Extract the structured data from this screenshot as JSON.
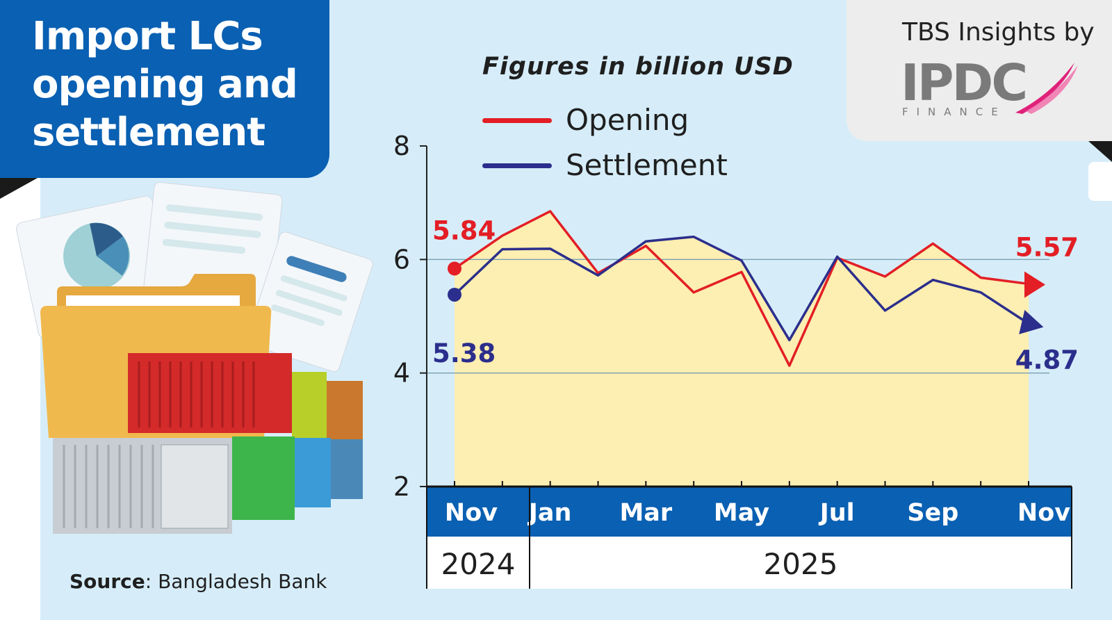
{
  "title": "Import LCs opening and settlement",
  "subtitle": "Figures in billion USD",
  "brand": {
    "prefix": "TBS Insights by",
    "logo_text": "IPDC",
    "logo_subtext": "FINANCE"
  },
  "source": {
    "label": "Source",
    "value": ": Bangladesh Bank"
  },
  "colors": {
    "opening": "#e31e25",
    "settlement": "#2b2e8c",
    "area_fill": "#fdeeb1",
    "axis_band": "#0a60b2",
    "title_bg": "#0a60b2",
    "background": "#d6edf9"
  },
  "chart_data": {
    "type": "line",
    "title": "Import LCs opening and settlement",
    "ylabel": "",
    "xlabel": "",
    "ylim": [
      2,
      8
    ],
    "yticks": [
      2,
      4,
      6,
      8
    ],
    "grid": true,
    "legend_placement": "top-left",
    "x": [
      "Nov 2024",
      "Dec 2024",
      "Jan 2025",
      "Feb 2025",
      "Mar 2025",
      "Apr 2025",
      "May 2025",
      "Jun 2025",
      "Jul 2025",
      "Aug 2025",
      "Sep 2025",
      "Oct 2025",
      "Nov 2025"
    ],
    "x_tick_labels": [
      "Nov",
      "",
      "Jan",
      "",
      "Mar",
      "",
      "May",
      "",
      "Jul",
      "",
      "Sep",
      "",
      "Nov"
    ],
    "year_labels": [
      {
        "label": "2024",
        "from": 0,
        "to": 0
      },
      {
        "label": "2025",
        "from": 1,
        "to": 12
      }
    ],
    "series": [
      {
        "name": "Opening",
        "values": [
          5.84,
          6.42,
          6.85,
          5.76,
          6.24,
          5.42,
          5.78,
          4.13,
          6.03,
          5.7,
          6.28,
          5.68,
          5.57
        ]
      },
      {
        "name": "Settlement",
        "values": [
          5.38,
          6.18,
          6.19,
          5.72,
          6.32,
          6.4,
          5.98,
          4.58,
          6.05,
          5.1,
          5.64,
          5.42,
          4.87
        ]
      }
    ],
    "annotations": [
      {
        "series": "Opening",
        "point": "first",
        "text": "5.84"
      },
      {
        "series": "Settlement",
        "point": "first",
        "text": "5.38"
      },
      {
        "series": "Opening",
        "point": "last",
        "text": "5.57"
      },
      {
        "series": "Settlement",
        "point": "last",
        "text": "4.87"
      }
    ]
  }
}
